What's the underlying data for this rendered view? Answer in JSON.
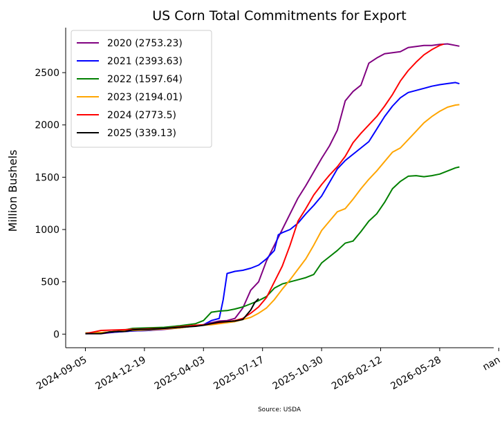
{
  "chart_data": {
    "type": "line",
    "title": "US Corn Total Commitments for Export",
    "xlabel": "",
    "ylabel": "Million Bushels",
    "source_note": "Source: USDA",
    "x_ticks": [
      "2024-09-05",
      "2024-12-19",
      "2025-04-03",
      "2025-07-17",
      "2025-10-30",
      "2026-02-12",
      "2026-05-28",
      "nan"
    ],
    "y_ticks": [
      "0",
      "500",
      "1000",
      "1500",
      "2000",
      "2500"
    ],
    "ylim": [
      -130,
      2930
    ],
    "xlim_days": [
      -35,
      726
    ],
    "grid": false,
    "legend_position": "top-left",
    "series": [
      {
        "name": "2020 (2753.23)",
        "color": "#800080",
        "points": [
          [
            0,
            5
          ],
          [
            28,
            5
          ],
          [
            56,
            20
          ],
          [
            84,
            30
          ],
          [
            112,
            35
          ],
          [
            140,
            45
          ],
          [
            168,
            60
          ],
          [
            196,
            80
          ],
          [
            210,
            90
          ],
          [
            224,
            110
          ],
          [
            238,
            125
          ],
          [
            252,
            130
          ],
          [
            266,
            150
          ],
          [
            280,
            250
          ],
          [
            294,
            420
          ],
          [
            308,
            500
          ],
          [
            322,
            700
          ],
          [
            336,
            850
          ],
          [
            350,
            1000
          ],
          [
            364,
            1150
          ],
          [
            378,
            1300
          ],
          [
            392,
            1420
          ],
          [
            406,
            1550
          ],
          [
            420,
            1680
          ],
          [
            434,
            1800
          ],
          [
            448,
            1950
          ],
          [
            462,
            2230
          ],
          [
            476,
            2320
          ],
          [
            490,
            2380
          ],
          [
            504,
            2590
          ],
          [
            518,
            2640
          ],
          [
            532,
            2680
          ],
          [
            546,
            2690
          ],
          [
            560,
            2700
          ],
          [
            574,
            2740
          ],
          [
            588,
            2750
          ],
          [
            602,
            2760
          ],
          [
            616,
            2760
          ],
          [
            630,
            2770
          ],
          [
            644,
            2775
          ],
          [
            658,
            2760
          ],
          [
            665,
            2753
          ]
        ]
      },
      {
        "name": "2021 (2393.63)",
        "color": "#0000ff",
        "points": [
          [
            0,
            5
          ],
          [
            28,
            10
          ],
          [
            56,
            20
          ],
          [
            84,
            30
          ],
          [
            112,
            35
          ],
          [
            140,
            50
          ],
          [
            168,
            65
          ],
          [
            196,
            80
          ],
          [
            210,
            90
          ],
          [
            224,
            130
          ],
          [
            238,
            150
          ],
          [
            245,
            330
          ],
          [
            252,
            580
          ],
          [
            266,
            600
          ],
          [
            280,
            610
          ],
          [
            294,
            630
          ],
          [
            308,
            660
          ],
          [
            322,
            720
          ],
          [
            336,
            800
          ],
          [
            343,
            950
          ],
          [
            350,
            970
          ],
          [
            364,
            1000
          ],
          [
            378,
            1060
          ],
          [
            392,
            1150
          ],
          [
            406,
            1230
          ],
          [
            420,
            1320
          ],
          [
            434,
            1450
          ],
          [
            448,
            1580
          ],
          [
            462,
            1660
          ],
          [
            476,
            1720
          ],
          [
            490,
            1780
          ],
          [
            504,
            1840
          ],
          [
            518,
            1960
          ],
          [
            532,
            2080
          ],
          [
            546,
            2180
          ],
          [
            560,
            2260
          ],
          [
            574,
            2310
          ],
          [
            588,
            2330
          ],
          [
            602,
            2350
          ],
          [
            616,
            2370
          ],
          [
            630,
            2385
          ],
          [
            644,
            2395
          ],
          [
            658,
            2405
          ],
          [
            665,
            2394
          ]
        ]
      },
      {
        "name": "2022 (1597.64)",
        "color": "#008000",
        "points": [
          [
            0,
            10
          ],
          [
            28,
            15
          ],
          [
            56,
            25
          ],
          [
            84,
            55
          ],
          [
            112,
            60
          ],
          [
            140,
            65
          ],
          [
            168,
            80
          ],
          [
            196,
            100
          ],
          [
            210,
            130
          ],
          [
            224,
            210
          ],
          [
            238,
            220
          ],
          [
            252,
            225
          ],
          [
            266,
            240
          ],
          [
            280,
            260
          ],
          [
            294,
            290
          ],
          [
            308,
            320
          ],
          [
            322,
            360
          ],
          [
            336,
            440
          ],
          [
            350,
            480
          ],
          [
            364,
            500
          ],
          [
            378,
            520
          ],
          [
            392,
            540
          ],
          [
            406,
            570
          ],
          [
            420,
            680
          ],
          [
            434,
            740
          ],
          [
            448,
            800
          ],
          [
            462,
            870
          ],
          [
            476,
            890
          ],
          [
            490,
            980
          ],
          [
            504,
            1080
          ],
          [
            518,
            1150
          ],
          [
            532,
            1260
          ],
          [
            546,
            1390
          ],
          [
            560,
            1460
          ],
          [
            574,
            1510
          ],
          [
            588,
            1515
          ],
          [
            602,
            1505
          ],
          [
            616,
            1515
          ],
          [
            630,
            1530
          ],
          [
            644,
            1560
          ],
          [
            658,
            1590
          ],
          [
            665,
            1598
          ]
        ]
      },
      {
        "name": "2023 (2194.01)",
        "color": "#ffa500",
        "points": [
          [
            0,
            10
          ],
          [
            28,
            15
          ],
          [
            56,
            25
          ],
          [
            84,
            35
          ],
          [
            112,
            40
          ],
          [
            140,
            50
          ],
          [
            168,
            60
          ],
          [
            196,
            80
          ],
          [
            210,
            85
          ],
          [
            224,
            90
          ],
          [
            238,
            100
          ],
          [
            252,
            110
          ],
          [
            266,
            120
          ],
          [
            280,
            140
          ],
          [
            294,
            160
          ],
          [
            308,
            200
          ],
          [
            322,
            250
          ],
          [
            336,
            330
          ],
          [
            350,
            430
          ],
          [
            364,
            520
          ],
          [
            378,
            620
          ],
          [
            392,
            720
          ],
          [
            406,
            850
          ],
          [
            420,
            990
          ],
          [
            434,
            1080
          ],
          [
            448,
            1170
          ],
          [
            462,
            1200
          ],
          [
            476,
            1290
          ],
          [
            490,
            1390
          ],
          [
            504,
            1480
          ],
          [
            518,
            1560
          ],
          [
            532,
            1650
          ],
          [
            546,
            1740
          ],
          [
            560,
            1780
          ],
          [
            574,
            1860
          ],
          [
            588,
            1940
          ],
          [
            602,
            2020
          ],
          [
            616,
            2080
          ],
          [
            630,
            2130
          ],
          [
            644,
            2170
          ],
          [
            658,
            2190
          ],
          [
            665,
            2194
          ]
        ]
      },
      {
        "name": "2024 (2773.5)",
        "color": "#ff0000",
        "points": [
          [
            0,
            5
          ],
          [
            14,
            20
          ],
          [
            28,
            35
          ],
          [
            56,
            40
          ],
          [
            84,
            45
          ],
          [
            112,
            50
          ],
          [
            140,
            55
          ],
          [
            168,
            70
          ],
          [
            196,
            85
          ],
          [
            210,
            90
          ],
          [
            224,
            100
          ],
          [
            238,
            110
          ],
          [
            252,
            120
          ],
          [
            266,
            130
          ],
          [
            280,
            150
          ],
          [
            294,
            200
          ],
          [
            308,
            260
          ],
          [
            322,
            350
          ],
          [
            336,
            500
          ],
          [
            350,
            650
          ],
          [
            364,
            850
          ],
          [
            378,
            1080
          ],
          [
            392,
            1200
          ],
          [
            406,
            1330
          ],
          [
            420,
            1430
          ],
          [
            434,
            1520
          ],
          [
            448,
            1600
          ],
          [
            462,
            1700
          ],
          [
            476,
            1830
          ],
          [
            490,
            1920
          ],
          [
            504,
            2000
          ],
          [
            518,
            2080
          ],
          [
            532,
            2180
          ],
          [
            546,
            2290
          ],
          [
            560,
            2420
          ],
          [
            574,
            2520
          ],
          [
            588,
            2600
          ],
          [
            602,
            2670
          ],
          [
            616,
            2720
          ],
          [
            630,
            2760
          ],
          [
            637,
            2773
          ]
        ]
      },
      {
        "name": "2025 (339.13)",
        "color": "#000000",
        "points": [
          [
            0,
            5
          ],
          [
            14,
            5
          ],
          [
            28,
            5
          ],
          [
            42,
            20
          ],
          [
            56,
            25
          ],
          [
            70,
            25
          ],
          [
            84,
            40
          ],
          [
            98,
            45
          ],
          [
            112,
            45
          ],
          [
            126,
            50
          ],
          [
            140,
            55
          ],
          [
            154,
            60
          ],
          [
            168,
            65
          ],
          [
            182,
            70
          ],
          [
            196,
            75
          ],
          [
            210,
            85
          ],
          [
            224,
            100
          ],
          [
            238,
            115
          ],
          [
            252,
            120
          ],
          [
            266,
            125
          ],
          [
            280,
            140
          ],
          [
            294,
            230
          ],
          [
            301,
            300
          ],
          [
            308,
            339
          ]
        ]
      }
    ]
  }
}
